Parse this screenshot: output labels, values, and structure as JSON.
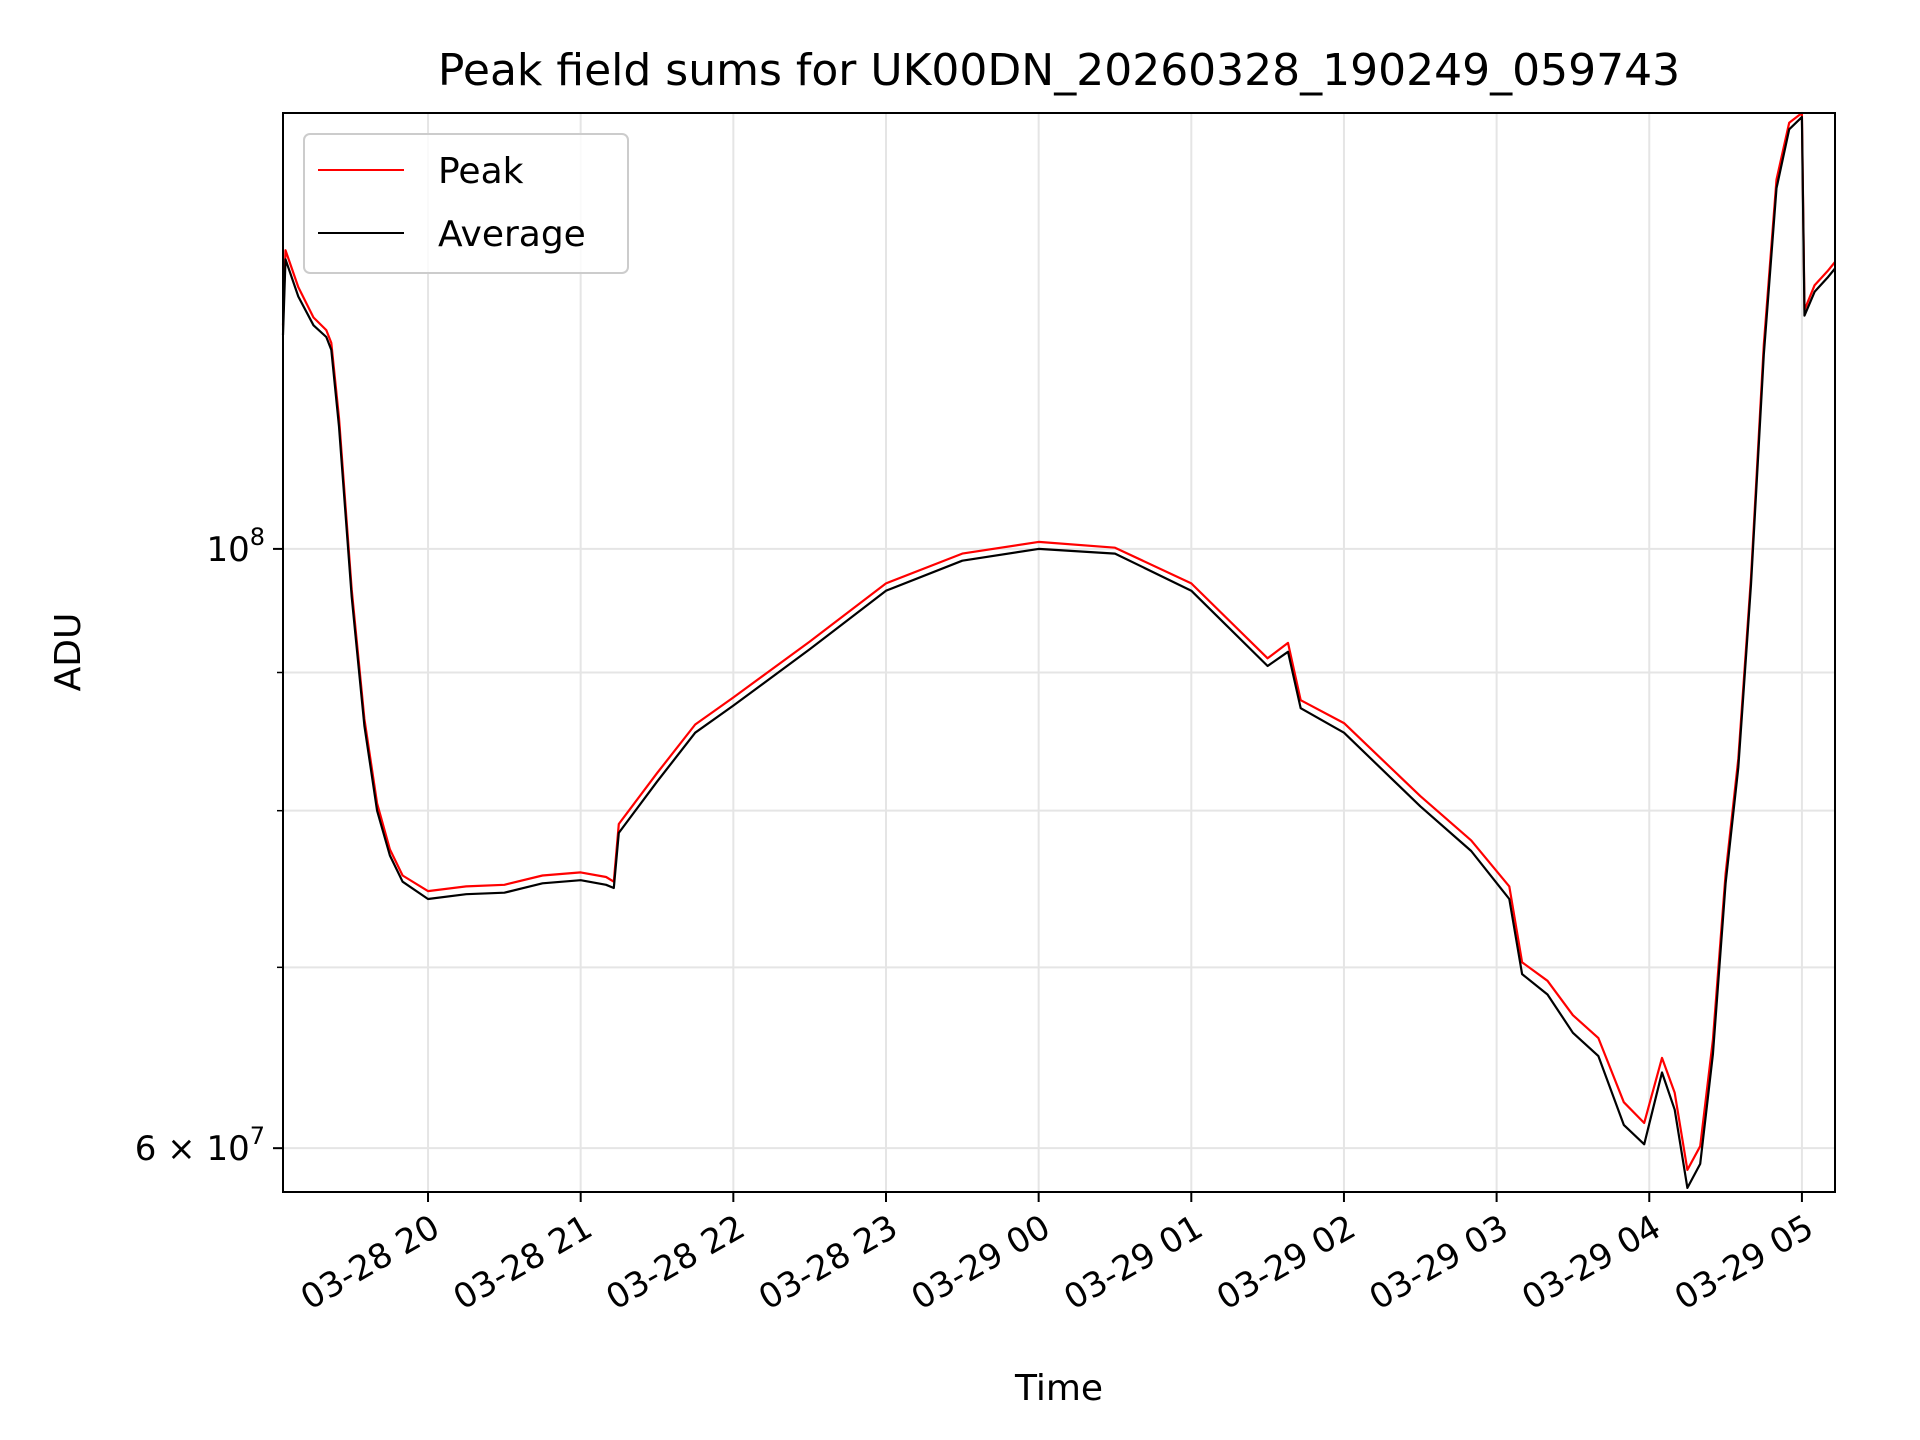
{
  "chart_data": {
    "type": "line",
    "title": "Peak field sums for UK00DN_20260328_190249_059743",
    "xlabel": "Time",
    "ylabel": "ADU",
    "y_scale": "log",
    "grid": true,
    "legend_position": "top-left",
    "xlim": [
      "2026-03-28 19:03",
      "2026-03-29 05:13"
    ],
    "ylim": [
      57800000,
      145000000
    ],
    "x_ticks": [
      {
        "value": "2026-03-28 20:00",
        "label": "03-28 20"
      },
      {
        "value": "2026-03-28 21:00",
        "label": "03-28 21"
      },
      {
        "value": "2026-03-28 22:00",
        "label": "03-28 22"
      },
      {
        "value": "2026-03-28 23:00",
        "label": "03-28 23"
      },
      {
        "value": "2026-03-29 00:00",
        "label": "03-29 00"
      },
      {
        "value": "2026-03-29 01:00",
        "label": "03-29 01"
      },
      {
        "value": "2026-03-29 02:00",
        "label": "03-29 02"
      },
      {
        "value": "2026-03-29 03:00",
        "label": "03-29 03"
      },
      {
        "value": "2026-03-29 04:00",
        "label": "03-29 04"
      },
      {
        "value": "2026-03-29 05:00",
        "label": "03-29 05"
      }
    ],
    "y_major_ticks": [
      {
        "value": 60000000,
        "label_base": "6 × 10",
        "label_exp": "7"
      },
      {
        "value": 100000000,
        "label_base": "10",
        "label_exp": "8"
      }
    ],
    "y_minor_ticks": [
      70000000,
      80000000,
      90000000
    ],
    "x_gridlines": [
      "2026-03-28 20:00",
      "2026-03-28 21:00",
      "2026-03-28 22:00",
      "2026-03-28 23:00",
      "2026-03-29 00:00",
      "2026-03-29 01:00",
      "2026-03-29 02:00",
      "2026-03-29 03:00",
      "2026-03-29 04:00",
      "2026-03-29 05:00"
    ],
    "series": [
      {
        "name": "Average",
        "color": "#000000",
        "points": [
          [
            "2026-03-28 19:03",
            120000000
          ],
          [
            "2026-03-28 19:04",
            128000000
          ],
          [
            "2026-03-28 19:09",
            124000000
          ],
          [
            "2026-03-28 19:15",
            121000000
          ],
          [
            "2026-03-28 19:20",
            119800000
          ],
          [
            "2026-03-28 19:22",
            118500000
          ],
          [
            "2026-03-28 19:25",
            111000000
          ],
          [
            "2026-03-28 19:30",
            96000000
          ],
          [
            "2026-03-28 19:35",
            86000000
          ],
          [
            "2026-03-28 19:40",
            80000000
          ],
          [
            "2026-03-28 19:45",
            77000000
          ],
          [
            "2026-03-28 19:50",
            75300000
          ],
          [
            "2026-03-28 20:00",
            74200000
          ],
          [
            "2026-03-28 20:15",
            74500000
          ],
          [
            "2026-03-28 20:30",
            74600000
          ],
          [
            "2026-03-28 20:45",
            75200000
          ],
          [
            "2026-03-28 21:00",
            75400000
          ],
          [
            "2026-03-28 21:10",
            75100000
          ],
          [
            "2026-03-28 21:13",
            74900000
          ],
          [
            "2026-03-28 21:15",
            78500000
          ],
          [
            "2026-03-28 21:30",
            82000000
          ],
          [
            "2026-03-28 21:45",
            85500000
          ],
          [
            "2026-03-28 22:00",
            87500000
          ],
          [
            "2026-03-28 22:30",
            91800000
          ],
          [
            "2026-03-28 23:00",
            96500000
          ],
          [
            "2026-03-28 23:30",
            99000000
          ],
          [
            "2026-03-29 00:00",
            100000000
          ],
          [
            "2026-03-29 00:30",
            99600000
          ],
          [
            "2026-03-29 01:00",
            96500000
          ],
          [
            "2026-03-29 01:30",
            90500000
          ],
          [
            "2026-03-29 01:38",
            91600000
          ],
          [
            "2026-03-29 01:43",
            87300000
          ],
          [
            "2026-03-29 02:00",
            85500000
          ],
          [
            "2026-03-29 02:30",
            80300000
          ],
          [
            "2026-03-29 02:50",
            77300000
          ],
          [
            "2026-03-29 03:05",
            74200000
          ],
          [
            "2026-03-29 03:10",
            69600000
          ],
          [
            "2026-03-29 03:20",
            68400000
          ],
          [
            "2026-03-29 03:30",
            66200000
          ],
          [
            "2026-03-29 03:40",
            64900000
          ],
          [
            "2026-03-29 03:50",
            61200000
          ],
          [
            "2026-03-29 03:58",
            60200000
          ],
          [
            "2026-03-29 04:05",
            64000000
          ],
          [
            "2026-03-29 04:10",
            62000000
          ],
          [
            "2026-03-29 04:15",
            58000000
          ],
          [
            "2026-03-29 04:20",
            59200000
          ],
          [
            "2026-03-29 04:25",
            65000000
          ],
          [
            "2026-03-29 04:30",
            75200000
          ],
          [
            "2026-03-29 04:35",
            83000000
          ],
          [
            "2026-03-29 04:40",
            97000000
          ],
          [
            "2026-03-29 04:45",
            118000000
          ],
          [
            "2026-03-29 04:50",
            136000000
          ],
          [
            "2026-03-29 04:55",
            143000000
          ],
          [
            "2026-03-29 05:00",
            144500000
          ],
          [
            "2026-03-29 05:01",
            122000000
          ],
          [
            "2026-03-29 05:05",
            124500000
          ],
          [
            "2026-03-29 05:10",
            126000000
          ],
          [
            "2026-03-29 05:13",
            127000000
          ]
        ]
      },
      {
        "name": "Peak",
        "color": "#ff0000",
        "points": [
          [
            "2026-03-28 19:03",
            121000000
          ],
          [
            "2026-03-28 19:04",
            129000000
          ],
          [
            "2026-03-28 19:09",
            125000000
          ],
          [
            "2026-03-28 19:15",
            121800000
          ],
          [
            "2026-03-28 19:20",
            120500000
          ],
          [
            "2026-03-28 19:22",
            119200000
          ],
          [
            "2026-03-28 19:25",
            111800000
          ],
          [
            "2026-03-28 19:30",
            96600000
          ],
          [
            "2026-03-28 19:35",
            86500000
          ],
          [
            "2026-03-28 19:40",
            80500000
          ],
          [
            "2026-03-28 19:45",
            77400000
          ],
          [
            "2026-03-28 19:50",
            75700000
          ],
          [
            "2026-03-28 20:00",
            74700000
          ],
          [
            "2026-03-28 20:15",
            75000000
          ],
          [
            "2026-03-28 20:30",
            75100000
          ],
          [
            "2026-03-28 20:45",
            75700000
          ],
          [
            "2026-03-28 21:00",
            75900000
          ],
          [
            "2026-03-28 21:10",
            75600000
          ],
          [
            "2026-03-28 21:13",
            75300000
          ],
          [
            "2026-03-28 21:15",
            79100000
          ],
          [
            "2026-03-28 21:30",
            82600000
          ],
          [
            "2026-03-28 21:45",
            86100000
          ],
          [
            "2026-03-28 22:00",
            88100000
          ],
          [
            "2026-03-28 22:30",
            92400000
          ],
          [
            "2026-03-28 23:00",
            97100000
          ],
          [
            "2026-03-28 23:30",
            99600000
          ],
          [
            "2026-03-29 00:00",
            100600000
          ],
          [
            "2026-03-29 00:30",
            100100000
          ],
          [
            "2026-03-29 01:00",
            97100000
          ],
          [
            "2026-03-29 01:30",
            91100000
          ],
          [
            "2026-03-29 01:38",
            92300000
          ],
          [
            "2026-03-29 01:43",
            87900000
          ],
          [
            "2026-03-29 02:00",
            86200000
          ],
          [
            "2026-03-29 02:30",
            81000000
          ],
          [
            "2026-03-29 02:50",
            78000000
          ],
          [
            "2026-03-29 03:05",
            75000000
          ],
          [
            "2026-03-29 03:10",
            70300000
          ],
          [
            "2026-03-29 03:20",
            69200000
          ],
          [
            "2026-03-29 03:30",
            67200000
          ],
          [
            "2026-03-29 03:40",
            65900000
          ],
          [
            "2026-03-29 03:50",
            62400000
          ],
          [
            "2026-03-29 03:58",
            61300000
          ],
          [
            "2026-03-29 04:05",
            64800000
          ],
          [
            "2026-03-29 04:10",
            62900000
          ],
          [
            "2026-03-29 04:15",
            58900000
          ],
          [
            "2026-03-29 04:20",
            60100000
          ],
          [
            "2026-03-29 04:25",
            65800000
          ],
          [
            "2026-03-29 04:30",
            75800000
          ],
          [
            "2026-03-29 04:35",
            83600000
          ],
          [
            "2026-03-29 04:40",
            97600000
          ],
          [
            "2026-03-29 04:45",
            119000000
          ],
          [
            "2026-03-29 04:50",
            137000000
          ],
          [
            "2026-03-29 04:55",
            143800000
          ],
          [
            "2026-03-29 05:00",
            145000000
          ],
          [
            "2026-03-29 05:01",
            122600000
          ],
          [
            "2026-03-29 05:05",
            125200000
          ],
          [
            "2026-03-29 05:10",
            126700000
          ],
          [
            "2026-03-29 05:13",
            127700000
          ]
        ]
      }
    ],
    "legend": [
      {
        "label": "Peak",
        "color": "#ff0000"
      },
      {
        "label": "Average",
        "color": "#000000"
      }
    ]
  }
}
